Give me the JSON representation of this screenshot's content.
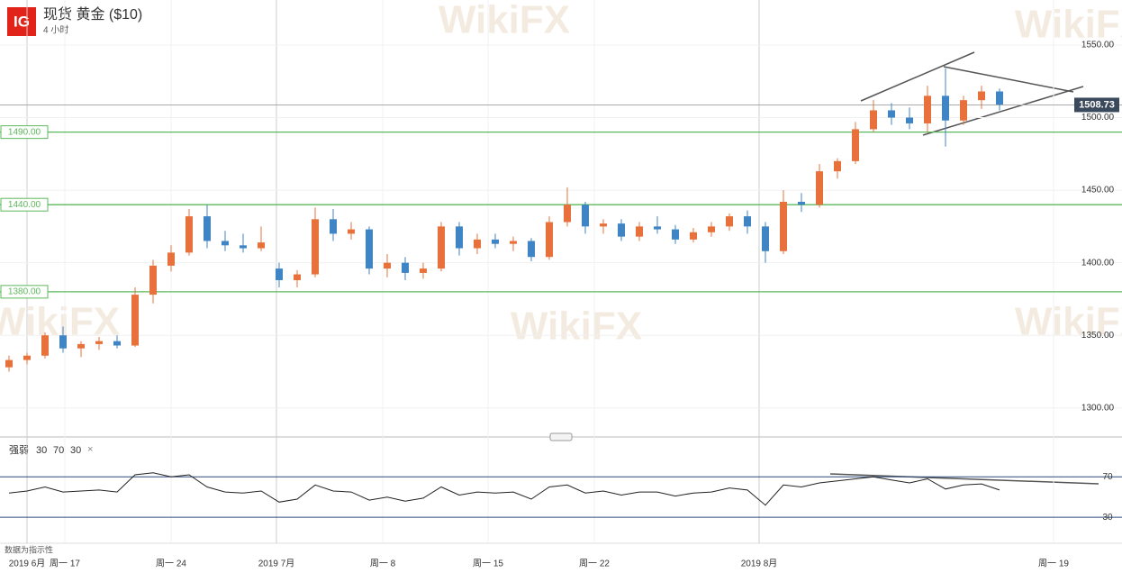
{
  "header": {
    "logo": "IG",
    "title": "现货 黄金 ($10)",
    "interval": "4 小时"
  },
  "watermark": "WikiFX",
  "footer_note": "数据为指示性",
  "chart_data": [
    {
      "type": "candlestick",
      "up_color": "#e8703a",
      "down_color": "#3f84c4",
      "xlim": [
        -0.5,
        61.8
      ],
      "xticks": [
        {
          "value": 1,
          "label": "2019 6月"
        },
        {
          "value": 3.1,
          "label": "周一 17"
        },
        {
          "value": 9,
          "label": "周一 24"
        },
        {
          "value": 14.85,
          "label": "2019 7月"
        },
        {
          "value": 20.75,
          "label": "周一 8"
        },
        {
          "value": 26.6,
          "label": "周一 15"
        },
        {
          "value": 32.5,
          "label": "周一 22"
        },
        {
          "value": 41.65,
          "label": "2019 8月"
        },
        {
          "value": 58,
          "label": "周一 19"
        }
      ],
      "ylim": [
        1280,
        1581
      ],
      "yticks": [
        {
          "value": 1300,
          "label": "1300.00"
        },
        {
          "value": 1350,
          "label": "1350.00"
        },
        {
          "value": 1400,
          "label": "1400.00"
        },
        {
          "value": 1450,
          "label": "1450.00"
        },
        {
          "value": 1500,
          "label": "1500.00"
        },
        {
          "value": 1550,
          "label": "1550.00"
        }
      ],
      "levels": [
        {
          "value": 1490,
          "label": "1490.00"
        },
        {
          "value": 1440,
          "label": "1440.00"
        },
        {
          "value": 1380,
          "label": "1380.00"
        }
      ],
      "level_color": "#5cb85c",
      "last_price": 1508.73,
      "ohlc": [
        [
          1328,
          1336,
          1325,
          1333
        ],
        [
          1333,
          1338,
          1330,
          1336
        ],
        [
          1336,
          1352,
          1334,
          1350
        ],
        [
          1350,
          1356,
          1338,
          1341
        ],
        [
          1341,
          1346,
          1335,
          1344
        ],
        [
          1344,
          1349,
          1340,
          1346
        ],
        [
          1346,
          1350,
          1341,
          1343
        ],
        [
          1343,
          1383,
          1342,
          1378
        ],
        [
          1378,
          1402,
          1372,
          1398
        ],
        [
          1398,
          1412,
          1394,
          1407
        ],
        [
          1407,
          1437,
          1405,
          1432
        ],
        [
          1432,
          1440,
          1410,
          1415
        ],
        [
          1415,
          1422,
          1408,
          1412
        ],
        [
          1412,
          1420,
          1407,
          1410
        ],
        [
          1410,
          1425,
          1408,
          1414
        ],
        [
          1396,
          1400,
          1383,
          1388
        ],
        [
          1388,
          1395,
          1383,
          1392
        ],
        [
          1392,
          1438,
          1390,
          1430
        ],
        [
          1430,
          1437,
          1415,
          1420
        ],
        [
          1420,
          1428,
          1416,
          1423
        ],
        [
          1423,
          1425,
          1392,
          1396
        ],
        [
          1396,
          1406,
          1390,
          1400
        ],
        [
          1400,
          1404,
          1388,
          1393
        ],
        [
          1393,
          1400,
          1389,
          1396
        ],
        [
          1396,
          1428,
          1394,
          1425
        ],
        [
          1425,
          1428,
          1405,
          1410
        ],
        [
          1410,
          1420,
          1406,
          1416
        ],
        [
          1416,
          1420,
          1410,
          1413
        ],
        [
          1413,
          1418,
          1408,
          1415
        ],
        [
          1415,
          1417,
          1401,
          1404
        ],
        [
          1404,
          1432,
          1402,
          1428
        ],
        [
          1428,
          1452,
          1425,
          1440
        ],
        [
          1440,
          1442,
          1420,
          1425
        ],
        [
          1425,
          1430,
          1420,
          1427
        ],
        [
          1427,
          1430,
          1415,
          1418
        ],
        [
          1418,
          1428,
          1415,
          1425
        ],
        [
          1425,
          1432,
          1420,
          1423
        ],
        [
          1423,
          1426,
          1413,
          1416
        ],
        [
          1416,
          1424,
          1414,
          1421
        ],
        [
          1421,
          1428,
          1418,
          1425
        ],
        [
          1425,
          1434,
          1422,
          1432
        ],
        [
          1432,
          1436,
          1420,
          1425
        ],
        [
          1425,
          1428,
          1400,
          1408
        ],
        [
          1408,
          1450,
          1406,
          1442
        ],
        [
          1442,
          1448,
          1435,
          1440
        ],
        [
          1440,
          1468,
          1438,
          1463
        ],
        [
          1463,
          1472,
          1458,
          1470
        ],
        [
          1470,
          1497,
          1468,
          1492
        ],
        [
          1492,
          1512,
          1490,
          1505
        ],
        [
          1505,
          1510,
          1495,
          1500
        ],
        [
          1500,
          1507,
          1492,
          1496
        ],
        [
          1496,
          1522,
          1490,
          1515
        ],
        [
          1515,
          1534,
          1480,
          1498
        ],
        [
          1498,
          1515,
          1495,
          1512
        ],
        [
          1512,
          1522,
          1506,
          1518
        ],
        [
          1518,
          1520,
          1505,
          1509
        ]
      ]
    },
    {
      "type": "line",
      "title": "强弱",
      "params": [
        30,
        70,
        30
      ],
      "color": "#222222",
      "line_color": "#2c4a7a",
      "xlim": [
        -0.5,
        61.8
      ],
      "ylim": [
        7,
        105
      ],
      "yticks": [
        30,
        70
      ],
      "values": [
        54,
        56,
        60,
        55,
        56,
        57,
        55,
        72,
        74,
        70,
        72,
        60,
        55,
        54,
        56,
        45,
        48,
        62,
        56,
        55,
        47,
        50,
        46,
        49,
        60,
        52,
        55,
        54,
        55,
        48,
        60,
        62,
        54,
        56,
        52,
        55,
        55,
        51,
        54,
        55,
        59,
        57,
        42,
        62,
        60,
        64,
        66,
        68,
        70,
        67,
        64,
        68,
        58,
        62,
        63,
        57
      ]
    }
  ]
}
